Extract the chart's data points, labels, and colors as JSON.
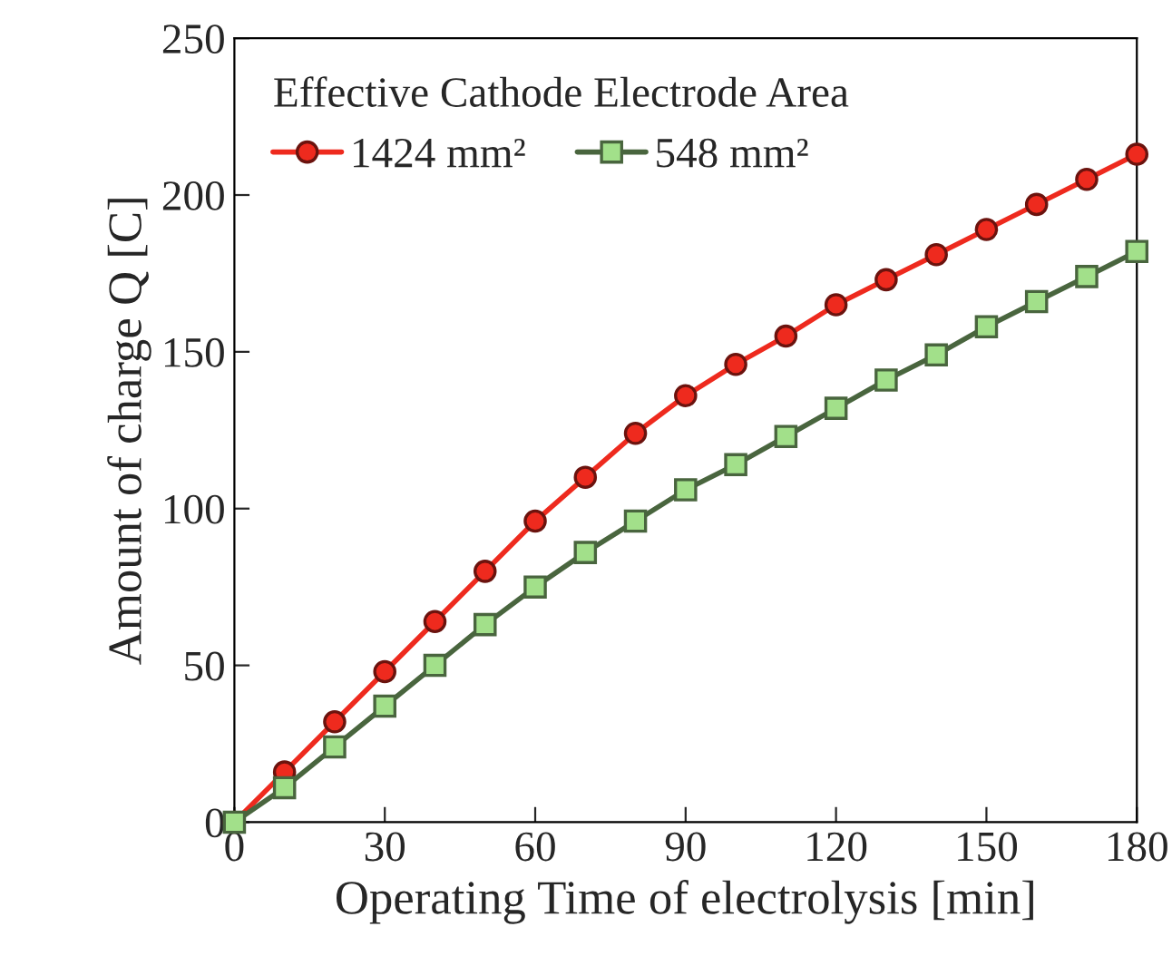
{
  "chart_data": {
    "type": "line",
    "xlabel": "Operating Time of electrolysis [min]",
    "ylabel": "Amount of charge Q [C]",
    "legend_title": "Effective Cathode Electrode Area",
    "x": [
      0,
      10,
      20,
      30,
      40,
      50,
      60,
      70,
      80,
      90,
      100,
      110,
      120,
      130,
      140,
      150,
      160,
      170,
      180
    ],
    "series": [
      {
        "name": "1424 mm²",
        "color": "#ee2a1e",
        "marker": "circle",
        "values": [
          0,
          16,
          32,
          48,
          64,
          80,
          96,
          110,
          124,
          136,
          146,
          155,
          165,
          173,
          181,
          189,
          197,
          205,
          213
        ]
      },
      {
        "name": "548 mm²",
        "color": "#a2e08a",
        "marker": "square",
        "values": [
          0,
          11,
          24,
          37,
          50,
          63,
          75,
          86,
          96,
          106,
          114,
          123,
          132,
          141,
          149,
          158,
          166,
          174,
          182
        ]
      }
    ],
    "xlim": [
      0,
      180
    ],
    "xticks": [
      0,
      30,
      60,
      90,
      120,
      150,
      180
    ],
    "ylim": [
      0,
      250
    ],
    "yticks": [
      0,
      50,
      100,
      150,
      200,
      250
    ],
    "grid": false,
    "legend": "top left",
    "line_style": "solid"
  }
}
